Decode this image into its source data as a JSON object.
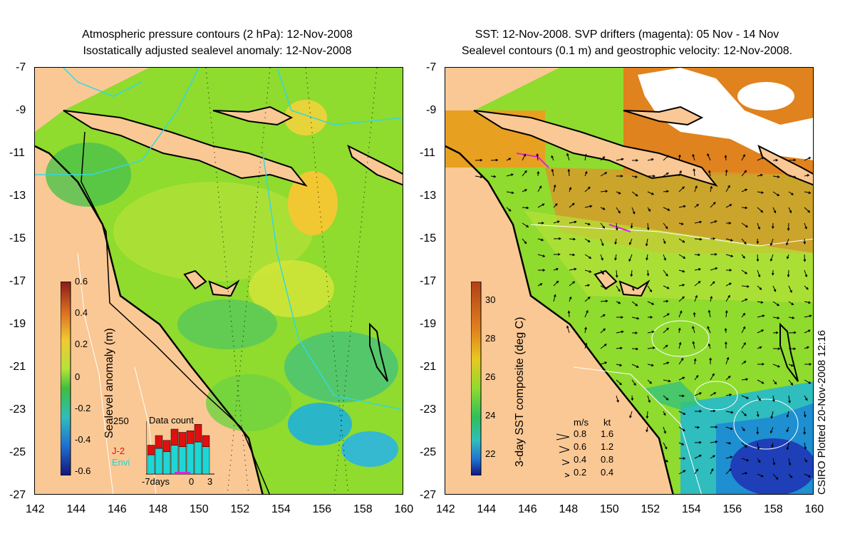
{
  "left_title": {
    "line1": "Atmospheric pressure contours (2 hPa): 12-Nov-2008",
    "line2": "Isostatically adjusted sealevel anomaly: 12-Nov-2008"
  },
  "right_title": {
    "line1": "SST: 12-Nov-2008. SVP drifters (magenta): 05 Nov - 14 Nov",
    "line2": "Sealevel contours (0.1 m) and geostrophic velocity: 12-Nov-2008."
  },
  "axes": {
    "lat_ticks": [
      "-7",
      "-9",
      "-11",
      "-13",
      "-15",
      "-17",
      "-19",
      "-21",
      "-23",
      "-25",
      "-27"
    ],
    "lon_ticks": [
      "142",
      "144",
      "146",
      "148",
      "150",
      "152",
      "154",
      "156",
      "158",
      "160"
    ]
  },
  "left_colorbar": {
    "label": "Sealevel anomaly (m)",
    "ticks": [
      "0.6",
      "0.4",
      "0.2",
      "0",
      "-0.2",
      "-0.4",
      "-0.6"
    ]
  },
  "right_colorbar": {
    "label": "3-day SST composite (deg C)",
    "ticks": [
      "30",
      "28",
      "26",
      "24",
      "22"
    ]
  },
  "data_count": {
    "title": "Data count",
    "max": "250",
    "series_j2": "J-2",
    "series_envi": "Envi",
    "x_label_left": "-7days",
    "x_label_mid": "0",
    "x_label_right": "3",
    "j2_values": [
      30,
      40,
      35,
      50,
      45,
      40,
      55,
      35
    ],
    "envi_values": [
      60,
      80,
      70,
      90,
      85,
      95,
      100,
      85
    ]
  },
  "velocity_legend": {
    "header_ms": "m/s",
    "header_kt": "kt",
    "rows": [
      {
        "ms": "0.8",
        "kt": "1.6"
      },
      {
        "ms": "0.6",
        "kt": "1.2"
      },
      {
        "ms": "0.4",
        "kt": "0.8"
      },
      {
        "ms": "0.2",
        "kt": "0.4"
      }
    ]
  },
  "credit": "CSIRO Plotted 20-Nov-2008 12:16",
  "colors": {
    "land": "#fac895",
    "ocean_green": "#7ed321",
    "ocean_yellow": "#c8e82a",
    "cloud": "#ffffff",
    "contour_cyan": "#36d7e0",
    "drifter_magenta": "#e020e0"
  }
}
